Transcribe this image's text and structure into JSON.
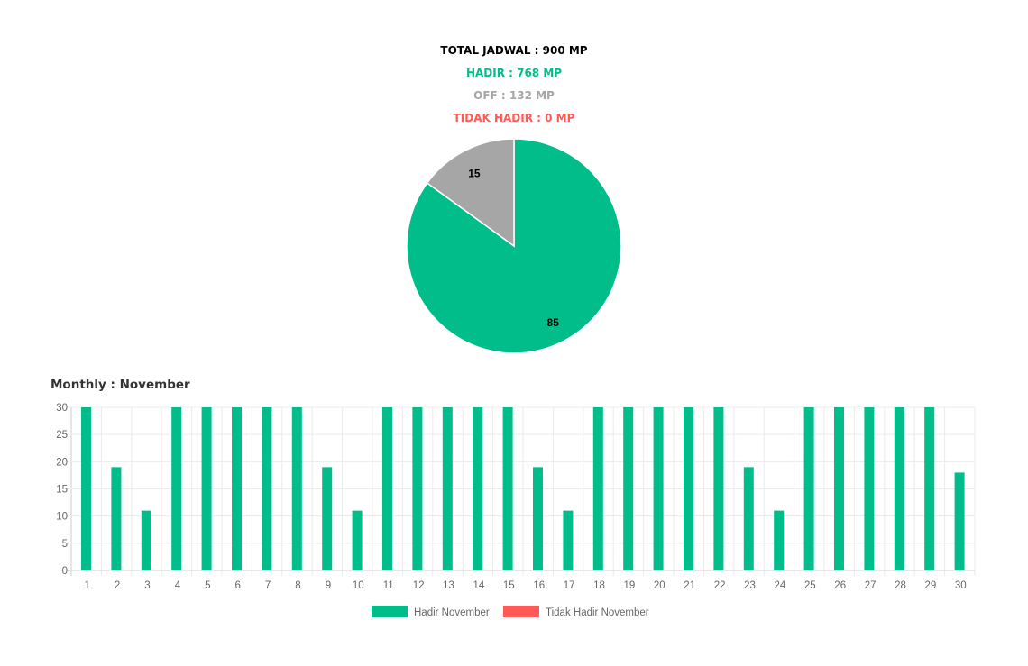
{
  "summary": {
    "total": "TOTAL JADWAL : 900 MP",
    "hadir": "HADIR : 768 MP",
    "off": "OFF : 132 MP",
    "tidak_hadir": "TIDAK HADIR : 0 MP"
  },
  "colors": {
    "hadir": "#00bd8a",
    "off": "#a6a6a6",
    "tidak_hadir": "#ff5a56",
    "total": "#000000"
  },
  "monthly_title": "Monthly : November",
  "chart_data": [
    {
      "type": "pie",
      "slices": [
        {
          "label": "HADIR",
          "value": 85,
          "color": "#00bd8a"
        },
        {
          "label": "OFF",
          "value": 15,
          "color": "#a6a6a6"
        }
      ]
    },
    {
      "type": "bar",
      "categories": [
        "1",
        "2",
        "3",
        "4",
        "5",
        "6",
        "7",
        "8",
        "9",
        "10",
        "11",
        "12",
        "13",
        "14",
        "15",
        "16",
        "17",
        "18",
        "19",
        "20",
        "21",
        "22",
        "23",
        "24",
        "25",
        "26",
        "27",
        "28",
        "29",
        "30"
      ],
      "series": [
        {
          "name": "Hadir November",
          "color": "#00bd8a",
          "values": [
            30,
            19,
            11,
            30,
            30,
            30,
            30,
            30,
            19,
            11,
            30,
            30,
            30,
            30,
            30,
            19,
            11,
            30,
            30,
            30,
            30,
            30,
            19,
            11,
            30,
            30,
            30,
            30,
            30,
            18
          ]
        },
        {
          "name": "Tidak Hadir November",
          "color": "#ff5a56",
          "values": [
            0,
            0,
            0,
            0,
            0,
            0,
            0,
            0,
            0,
            0,
            0,
            0,
            0,
            0,
            0,
            0,
            0,
            0,
            0,
            0,
            0,
            0,
            0,
            0,
            0,
            0,
            0,
            0,
            0,
            0
          ]
        }
      ],
      "yticks": [
        "0",
        "5",
        "10",
        "15",
        "20",
        "25",
        "30"
      ],
      "ylim": [
        0,
        30
      ],
      "grid": true,
      "legend": "bottom"
    }
  ]
}
